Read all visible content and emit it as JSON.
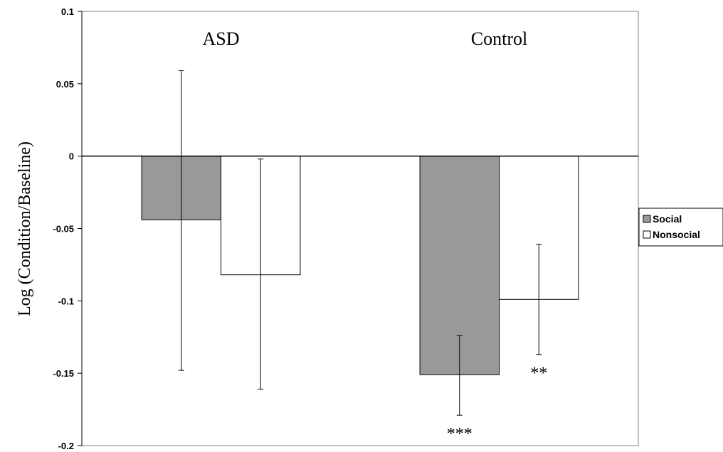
{
  "chart_data": {
    "type": "bar",
    "categories": [
      "ASD",
      "Control"
    ],
    "series": [
      {
        "name": "Social",
        "color": "#999999",
        "values": [
          -0.044,
          -0.151
        ],
        "err_low": [
          -0.148,
          -0.179
        ],
        "err_high": [
          0.059,
          -0.124
        ]
      },
      {
        "name": "Nonsocial",
        "color": "#ffffff",
        "values": [
          -0.082,
          -0.099
        ],
        "err_low": [
          -0.161,
          -0.137
        ],
        "err_high": [
          -0.002,
          -0.061
        ]
      }
    ],
    "annotations": [
      {
        "text": "***",
        "series": 0,
        "category": 1
      },
      {
        "text": "**",
        "series": 1,
        "category": 1
      }
    ],
    "ylabel": "Log (Condition/Baseline)",
    "ylim": [
      -0.2,
      0.1
    ],
    "yticks": [
      0.1,
      0.05,
      0,
      -0.05,
      -0.1,
      -0.15,
      -0.2
    ],
    "ytick_labels": [
      "0.1",
      "0.05",
      "0",
      "-0.05",
      "-0.1",
      "-0.15",
      "-0.2"
    ],
    "grid": false,
    "legend_position": "right"
  }
}
